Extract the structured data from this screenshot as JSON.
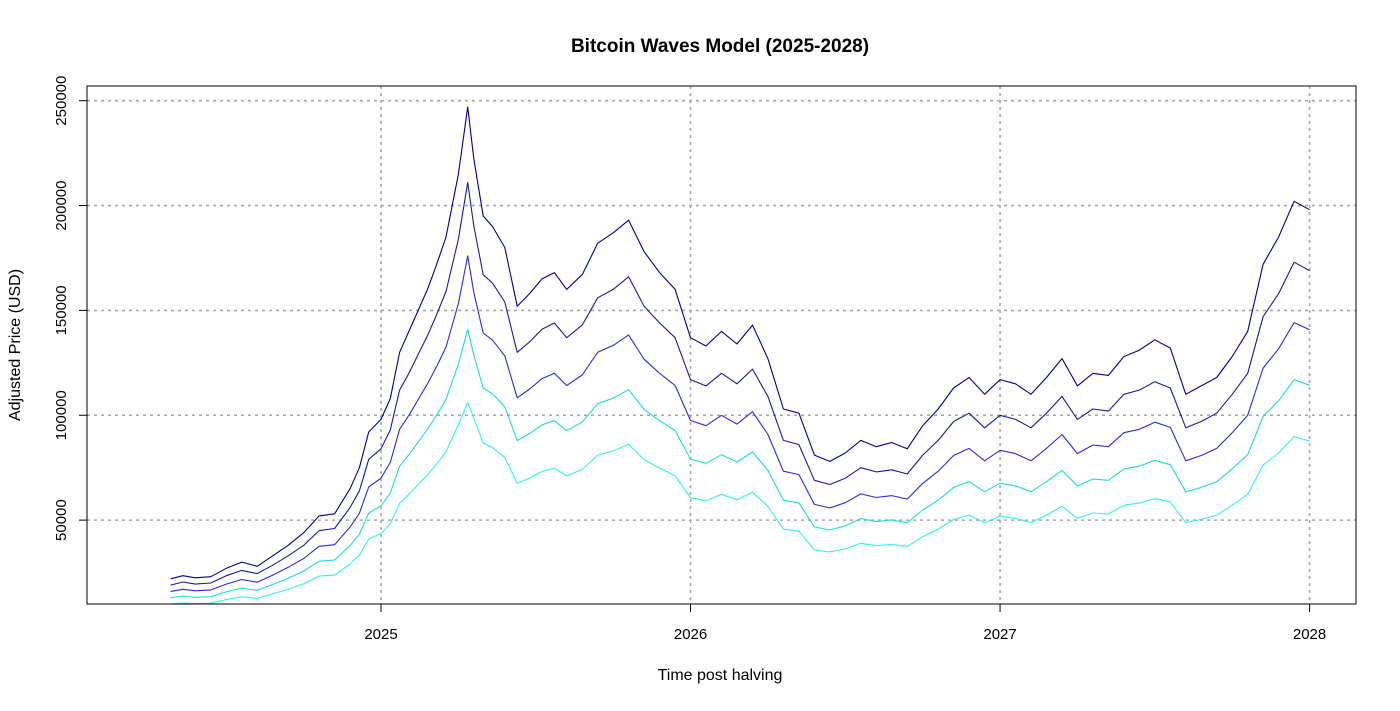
{
  "chart_data": {
    "type": "line",
    "title": "Bitcoin Waves Model (2025-2028)",
    "xlabel": "Time post halving",
    "ylabel": "Adjusted Price (USD)",
    "xlim": [
      2024.05,
      2028.15
    ],
    "ylim": [
      10000,
      257000
    ],
    "x_ticks": [
      2025,
      2026,
      2027,
      2028
    ],
    "x_tick_labels": [
      "2025",
      "2026",
      "2027",
      "2028"
    ],
    "y_ticks": [
      50000,
      100000,
      150000,
      200000,
      250000
    ],
    "y_tick_labels": [
      "50000",
      "100000",
      "150000",
      "200000",
      "250000"
    ],
    "grid": true,
    "grid_style": "dotted",
    "grid_color": "#a6a6a6",
    "legend": "none",
    "series": [
      {
        "color": "#00008b",
        "x": [
          2024.32,
          2024.36,
          2024.4,
          2024.45,
          2024.5,
          2024.55,
          2024.6,
          2024.65,
          2024.7,
          2024.75,
          2024.8,
          2024.85,
          2024.9,
          2024.93,
          2024.96,
          2025.0,
          2025.03,
          2025.06,
          2025.09,
          2025.12,
          2025.15,
          2025.18,
          2025.21,
          2025.25,
          2025.28,
          2025.3,
          2025.33,
          2025.36,
          2025.4,
          2025.44,
          2025.48,
          2025.52,
          2025.56,
          2025.6,
          2025.65,
          2025.7,
          2025.75,
          2025.8,
          2025.85,
          2025.9,
          2025.95,
          2026.0,
          2026.05,
          2026.1,
          2026.15,
          2026.2,
          2026.25,
          2026.3,
          2026.35,
          2026.4,
          2026.45,
          2026.5,
          2026.55,
          2026.6,
          2026.65,
          2026.7,
          2026.75,
          2026.8,
          2026.85,
          2026.9,
          2026.95,
          2027.0,
          2027.05,
          2027.1,
          2027.15,
          2027.2,
          2027.25,
          2027.3,
          2027.35,
          2027.4,
          2027.45,
          2027.5,
          2027.55,
          2027.6,
          2027.65,
          2027.7,
          2027.75,
          2027.8,
          2027.85,
          2027.9,
          2027.95,
          2028.0
        ],
        "values": [
          22000,
          23500,
          22500,
          23000,
          27000,
          30000,
          28000,
          33000,
          38000,
          44000,
          52000,
          53000,
          65000,
          75000,
          92000,
          98000,
          108000,
          130000,
          140000,
          150000,
          160000,
          172000,
          185000,
          215000,
          247000,
          222000,
          195000,
          190000,
          180000,
          152000,
          158000,
          165000,
          168000,
          160000,
          167000,
          182000,
          187000,
          193000,
          178000,
          168000,
          160000,
          137000,
          133000,
          140000,
          134000,
          143000,
          127000,
          103000,
          101000,
          81000,
          78000,
          82000,
          88000,
          85000,
          87000,
          84000,
          95000,
          103000,
          113000,
          118000,
          110000,
          117000,
          115000,
          110000,
          118000,
          127000,
          114000,
          120000,
          119000,
          128000,
          131000,
          136000,
          132000,
          110000,
          114000,
          118000,
          128000,
          140000,
          172000,
          185000,
          202000,
          198000
        ]
      },
      {
        "color": "#1a1a99",
        "x": [
          2024.32,
          2024.36,
          2024.4,
          2024.45,
          2024.5,
          2024.55,
          2024.6,
          2024.65,
          2024.7,
          2024.75,
          2024.8,
          2024.85,
          2024.9,
          2024.93,
          2024.96,
          2025.0,
          2025.03,
          2025.06,
          2025.09,
          2025.12,
          2025.15,
          2025.18,
          2025.21,
          2025.25,
          2025.28,
          2025.3,
          2025.33,
          2025.36,
          2025.4,
          2025.44,
          2025.48,
          2025.52,
          2025.56,
          2025.6,
          2025.65,
          2025.7,
          2025.75,
          2025.8,
          2025.85,
          2025.9,
          2025.95,
          2026.0,
          2026.05,
          2026.1,
          2026.15,
          2026.2,
          2026.25,
          2026.3,
          2026.35,
          2026.4,
          2026.45,
          2026.5,
          2026.55,
          2026.6,
          2026.65,
          2026.7,
          2026.75,
          2026.8,
          2026.85,
          2026.9,
          2026.95,
          2027.0,
          2027.05,
          2027.1,
          2027.15,
          2027.2,
          2027.25,
          2027.3,
          2027.35,
          2027.4,
          2027.45,
          2027.5,
          2027.55,
          2027.6,
          2027.65,
          2027.7,
          2027.75,
          2027.8,
          2027.85,
          2027.9,
          2027.95,
          2028.0
        ],
        "values": [
          19000,
          20500,
          19500,
          20000,
          23500,
          26000,
          24500,
          28500,
          33000,
          38000,
          45000,
          46000,
          56000,
          64000,
          79000,
          84000,
          93000,
          112000,
          120000,
          129000,
          138000,
          148000,
          159000,
          184000,
          211000,
          190000,
          167000,
          163000,
          154000,
          130000,
          135000,
          141000,
          144000,
          137000,
          143000,
          156000,
          160000,
          166000,
          152000,
          144000,
          137000,
          117000,
          114000,
          120000,
          115000,
          122000,
          109000,
          88000,
          86000,
          69000,
          67000,
          70000,
          75000,
          73000,
          74000,
          72000,
          81000,
          88000,
          97000,
          101000,
          94000,
          100000,
          98000,
          94000,
          101000,
          109000,
          98000,
          103000,
          102000,
          110000,
          112000,
          116000,
          113000,
          94000,
          97000,
          101000,
          110000,
          120000,
          147000,
          158000,
          173000,
          169000
        ]
      },
      {
        "color": "#2b2bd4",
        "x": [
          2024.32,
          2024.36,
          2024.4,
          2024.45,
          2024.5,
          2024.55,
          2024.6,
          2024.65,
          2024.7,
          2024.75,
          2024.8,
          2024.85,
          2024.9,
          2024.93,
          2024.96,
          2025.0,
          2025.03,
          2025.06,
          2025.09,
          2025.12,
          2025.15,
          2025.18,
          2025.21,
          2025.25,
          2025.28,
          2025.3,
          2025.33,
          2025.36,
          2025.4,
          2025.44,
          2025.48,
          2025.52,
          2025.56,
          2025.6,
          2025.65,
          2025.7,
          2025.75,
          2025.8,
          2025.85,
          2025.9,
          2025.95,
          2026.0,
          2026.05,
          2026.1,
          2026.15,
          2026.2,
          2026.25,
          2026.3,
          2026.35,
          2026.4,
          2026.45,
          2026.5,
          2026.55,
          2026.6,
          2026.65,
          2026.7,
          2026.75,
          2026.8,
          2026.85,
          2026.9,
          2026.95,
          2027.0,
          2027.05,
          2027.1,
          2027.15,
          2027.2,
          2027.25,
          2027.3,
          2027.35,
          2027.4,
          2027.45,
          2027.5,
          2027.55,
          2027.6,
          2027.65,
          2027.7,
          2027.75,
          2027.8,
          2027.85,
          2027.9,
          2027.95,
          2028.0
        ],
        "values": [
          16000,
          17000,
          16300,
          16700,
          19500,
          21700,
          20400,
          23800,
          27500,
          31700,
          37500,
          38300,
          46700,
          53300,
          65800,
          70000,
          77500,
          93300,
          100000,
          107500,
          115000,
          123300,
          132500,
          153300,
          176000,
          158300,
          139200,
          135800,
          128300,
          108300,
          112500,
          117500,
          120000,
          114200,
          119200,
          130000,
          133300,
          138300,
          126700,
          120000,
          114200,
          97500,
          95000,
          100000,
          95800,
          101700,
          90800,
          73300,
          71700,
          57500,
          55800,
          58300,
          62500,
          60800,
          61700,
          60000,
          67500,
          73300,
          80800,
          84200,
          78300,
          83300,
          81700,
          78300,
          84200,
          90800,
          81700,
          85800,
          85000,
          91700,
          93300,
          96700,
          94200,
          78300,
          80800,
          84200,
          91700,
          100000,
          122500,
          131700,
          144200,
          140800
        ]
      },
      {
        "color": "#1fd9d9",
        "x": [
          2024.32,
          2024.36,
          2024.4,
          2024.45,
          2024.5,
          2024.55,
          2024.6,
          2024.65,
          2024.7,
          2024.75,
          2024.8,
          2024.85,
          2024.9,
          2024.93,
          2024.96,
          2025.0,
          2025.03,
          2025.06,
          2025.09,
          2025.12,
          2025.15,
          2025.18,
          2025.21,
          2025.25,
          2025.28,
          2025.3,
          2025.33,
          2025.36,
          2025.4,
          2025.44,
          2025.48,
          2025.52,
          2025.56,
          2025.6,
          2025.65,
          2025.7,
          2025.75,
          2025.8,
          2025.85,
          2025.9,
          2025.95,
          2026.0,
          2026.05,
          2026.1,
          2026.15,
          2026.2,
          2026.25,
          2026.3,
          2026.35,
          2026.4,
          2026.45,
          2026.5,
          2026.55,
          2026.6,
          2026.65,
          2026.7,
          2026.75,
          2026.8,
          2026.85,
          2026.9,
          2026.95,
          2027.0,
          2027.05,
          2027.1,
          2027.15,
          2027.2,
          2027.25,
          2027.3,
          2027.35,
          2027.4,
          2027.45,
          2027.5,
          2027.55,
          2027.6,
          2027.65,
          2027.7,
          2027.75,
          2027.8,
          2027.85,
          2027.9,
          2027.95,
          2028.0
        ],
        "values": [
          13000,
          13800,
          13200,
          13500,
          15800,
          17600,
          16500,
          19300,
          22300,
          25700,
          30400,
          31000,
          37900,
          43300,
          53400,
          56800,
          62900,
          75700,
          81200,
          87200,
          93300,
          100100,
          107600,
          124400,
          141000,
          128500,
          113000,
          110200,
          104100,
          87900,
          91300,
          95400,
          97400,
          92700,
          96700,
          105500,
          108200,
          112200,
          102800,
          97400,
          92700,
          79100,
          77100,
          81200,
          77700,
          82500,
          73700,
          59500,
          58200,
          46700,
          45300,
          47300,
          50700,
          49300,
          50100,
          48700,
          54800,
          59500,
          65600,
          68300,
          63500,
          67600,
          66300,
          63500,
          68300,
          73700,
          66300,
          69600,
          69000,
          74400,
          75700,
          78500,
          76400,
          63500,
          65600,
          68300,
          74400,
          81200,
          99400,
          106900,
          117000,
          114300
        ]
      },
      {
        "color": "#33f0f0",
        "x": [
          2024.32,
          2024.36,
          2024.4,
          2024.45,
          2024.5,
          2024.55,
          2024.6,
          2024.65,
          2024.7,
          2024.75,
          2024.8,
          2024.85,
          2024.9,
          2024.93,
          2024.96,
          2025.0,
          2025.03,
          2025.06,
          2025.09,
          2025.12,
          2025.15,
          2025.18,
          2025.21,
          2025.25,
          2025.28,
          2025.3,
          2025.33,
          2025.36,
          2025.4,
          2025.44,
          2025.48,
          2025.52,
          2025.56,
          2025.6,
          2025.65,
          2025.7,
          2025.75,
          2025.8,
          2025.85,
          2025.9,
          2025.95,
          2026.0,
          2026.05,
          2026.1,
          2026.15,
          2026.2,
          2026.25,
          2026.3,
          2026.35,
          2026.4,
          2026.45,
          2026.5,
          2026.55,
          2026.6,
          2026.65,
          2026.7,
          2026.75,
          2026.8,
          2026.85,
          2026.9,
          2026.95,
          2027.0,
          2027.05,
          2027.1,
          2027.15,
          2027.2,
          2027.25,
          2027.3,
          2027.35,
          2027.4,
          2027.45,
          2027.5,
          2027.55,
          2027.6,
          2027.65,
          2027.7,
          2027.75,
          2027.8,
          2027.85,
          2027.9,
          2027.95,
          2028.0
        ],
        "values": [
          10000,
          10500,
          10200,
          10400,
          12100,
          13500,
          12700,
          14800,
          17100,
          19700,
          23300,
          23800,
          29100,
          33200,
          41000,
          43600,
          48300,
          58100,
          62300,
          67000,
          71600,
          76800,
          82600,
          95500,
          106000,
          98600,
          86700,
          84600,
          79900,
          67500,
          70100,
          73200,
          74800,
          71100,
          74200,
          81000,
          83000,
          86100,
          78900,
          74800,
          71100,
          60700,
          59200,
          62300,
          59700,
          63300,
          56600,
          45700,
          44700,
          35800,
          34800,
          36300,
          38900,
          37900,
          38400,
          37400,
          42100,
          45700,
          50300,
          52400,
          48800,
          51900,
          50800,
          48800,
          52400,
          56600,
          50800,
          53400,
          52900,
          57100,
          58100,
          60200,
          58700,
          48800,
          50300,
          52400,
          57100,
          62300,
          76300,
          82000,
          89800,
          87700
        ]
      }
    ]
  }
}
